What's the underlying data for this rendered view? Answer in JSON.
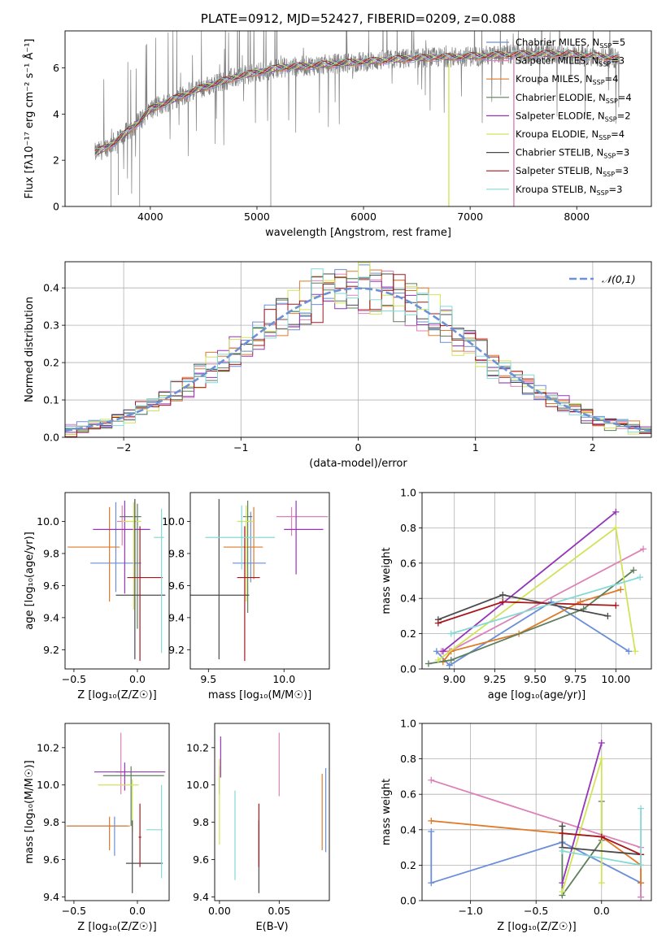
{
  "colors": {
    "chabrier_miles": "#6a8ed9",
    "salpeter_miles": "#dc82b8",
    "kroupa_miles": "#df7a28",
    "chabrier_elodie": "#5e7f5c",
    "salpeter_elodie": "#9535b8",
    "kroupa_elodie": "#d2e35a",
    "chabrier_stelib": "#4b4b4b",
    "salpeter_stelib": "#a6171c",
    "kroupa_stelib": "#84d9d5",
    "normal": "#6c91d6",
    "grid": "#b0b0b0"
  },
  "chart_data": [
    {
      "id": "spectrum",
      "type": "line",
      "title": "PLATE=0912, MJD=52427, FIBERID=0209, z=0.088",
      "xlabel": "wavelength [Angstrom, rest frame]",
      "ylabel": "Flux [fλ10⁻¹⁷ erg cm⁻² s⁻¹ Å⁻¹]",
      "xlim": [
        3200,
        8700
      ],
      "ylim": [
        0,
        7.6
      ],
      "xticks": [
        4000,
        5000,
        6000,
        7000,
        8000
      ],
      "yticks": [
        0,
        2,
        4,
        6
      ],
      "grid": false,
      "legend_position": "upper-right",
      "legend": [
        {
          "label": "Chabrier MILES, N",
          "sub": "SSP",
          "tail": "=5",
          "color_key": "chabrier_miles"
        },
        {
          "label": "Salpeter MILES, N",
          "sub": "SSP",
          "tail": "=3",
          "color_key": "salpeter_miles"
        },
        {
          "label": "Kroupa MILES, N",
          "sub": "SSP",
          "tail": "=4",
          "color_key": "kroupa_miles"
        },
        {
          "label": "Chabrier ELODIE, N",
          "sub": "SSP",
          "tail": "=4",
          "color_key": "chabrier_elodie"
        },
        {
          "label": "Salpeter ELODIE, N",
          "sub": "SSP",
          "tail": "=2",
          "color_key": "salpeter_elodie"
        },
        {
          "label": "Kroupa ELODIE, N",
          "sub": "SSP",
          "tail": "=4",
          "color_key": "kroupa_elodie"
        },
        {
          "label": "Chabrier STELIB, N",
          "sub": "SSP",
          "tail": "=3",
          "color_key": "chabrier_stelib"
        },
        {
          "label": "Salpeter STELIB, N",
          "sub": "SSP",
          "tail": "=3",
          "color_key": "salpeter_stelib"
        },
        {
          "label": "Kroupa STELIB, N",
          "sub": "SSP",
          "tail": "=3",
          "color_key": "kroupa_stelib"
        }
      ],
      "continuum": {
        "x": [
          3480,
          3600,
          3700,
          3800,
          3900,
          4000,
          4200,
          4400,
          4600,
          4800,
          5000,
          5200,
          5500,
          5800,
          6100,
          6400,
          6700,
          7000,
          7300,
          7600,
          7900,
          8200,
          8400
        ],
        "y": [
          2.3,
          2.6,
          2.9,
          3.3,
          3.7,
          4.2,
          4.6,
          5.0,
          5.3,
          5.6,
          5.8,
          6.0,
          6.1,
          6.2,
          6.3,
          6.4,
          6.45,
          6.5,
          6.55,
          6.6,
          6.6,
          6.5,
          6.4
        ]
      },
      "spike_lines": [
        {
          "x": 7410,
          "y0": 0,
          "y1": 6.6,
          "color_key": "salpeter_miles"
        },
        {
          "x": 6800,
          "y0": 0,
          "y1": 6.2,
          "color_key": "kroupa_elodie"
        }
      ]
    },
    {
      "id": "residual_histogram",
      "type": "histogram",
      "xlabel": "(data-model)/error",
      "ylabel": "Normed distribution",
      "xlim": [
        -2.5,
        2.5
      ],
      "ylim": [
        0,
        0.47
      ],
      "xticks": [
        -2,
        -1,
        0,
        1,
        2
      ],
      "yticks": [
        0,
        0.1,
        0.2,
        0.3,
        0.4
      ],
      "grid": true,
      "legend": [
        {
          "label": "𝒩(0,1)",
          "color_key": "normal",
          "style": "dashed"
        }
      ],
      "legend_position": "upper-right",
      "bin_range": [
        -2.5,
        2.5
      ],
      "bins": 50,
      "series_color_keys": [
        "chabrier_miles",
        "salpeter_miles",
        "kroupa_miles",
        "chabrier_elodie",
        "salpeter_elodie",
        "kroupa_elodie",
        "chabrier_stelib",
        "salpeter_stelib",
        "kroupa_stelib"
      ]
    },
    {
      "id": "age_vs_Z",
      "type": "errorbar",
      "xlabel": "Z [log₁₀(Z/Z☉)]",
      "ylabel": "age  [log₁₀(age/yr)]",
      "xlim": [
        -0.57,
        0.25
      ],
      "ylim": [
        9.08,
        10.18
      ],
      "xticks": [
        -0.5,
        0.0
      ],
      "yticks": [
        9.2,
        9.4,
        9.6,
        9.8,
        10.0
      ],
      "grid": false,
      "points": [
        {
          "x": -0.17,
          "xerr": [
            0.2,
            0.2
          ],
          "y": 9.74,
          "yerr": [
            0.18,
            0.38
          ],
          "color_key": "chabrier_miles"
        },
        {
          "x": -0.12,
          "xerr": [
            0.04,
            0.04
          ],
          "y": 10.0,
          "yerr": [
            0.15,
            0.1
          ],
          "color_key": "salpeter_miles"
        },
        {
          "x": -0.22,
          "xerr": [
            0.33,
            0.08
          ],
          "y": 9.84,
          "yerr": [
            0.34,
            0.25
          ],
          "color_key": "kroupa_miles"
        },
        {
          "x": 0.0,
          "xerr": [
            0.14,
            0.03
          ],
          "y": 10.03,
          "yerr": [
            0.7,
            0.08
          ],
          "color_key": "chabrier_elodie"
        },
        {
          "x": -0.1,
          "xerr": [
            0.25,
            0.2
          ],
          "y": 9.95,
          "yerr": [
            0.4,
            0.18
          ],
          "color_key": "salpeter_elodie"
        },
        {
          "x": -0.03,
          "xerr": [
            0.09,
            0.06
          ],
          "y": 10.0,
          "yerr": [
            0.55,
            0.12
          ],
          "color_key": "kroupa_elodie"
        },
        {
          "x": -0.02,
          "xerr": [
            0.15,
            0.24
          ],
          "y": 9.54,
          "yerr": [
            0.4,
            0.6
          ],
          "color_key": "chabrier_stelib"
        },
        {
          "x": 0.02,
          "xerr": [
            0.1,
            0.18
          ],
          "y": 9.65,
          "yerr": [
            0.52,
            0.32
          ],
          "color_key": "salpeter_stelib"
        },
        {
          "x": 0.19,
          "xerr": [
            0.06,
            0.02
          ],
          "y": 9.9,
          "yerr": [
            0.72,
            0.18
          ],
          "color_key": "kroupa_stelib"
        }
      ]
    },
    {
      "id": "age_vs_mass",
      "type": "errorbar",
      "xlabel": "mass [log₁₀(M/M☉)]",
      "ylabel": "",
      "xlim": [
        9.38,
        10.3
      ],
      "ylim": [
        9.08,
        10.18
      ],
      "xticks": [
        9.5,
        10.0
      ],
      "yticks": [
        9.2,
        9.4,
        9.6,
        9.8,
        10.0
      ],
      "grid": false,
      "points": [
        {
          "x": 9.78,
          "xerr": [
            0.12,
            0.1
          ],
          "y": 9.74,
          "yerr": [
            0.12,
            0.32
          ],
          "color_key": "chabrier_miles"
        },
        {
          "x": 10.05,
          "xerr": [
            0.1,
            0.24
          ],
          "y": 10.03,
          "yerr": [
            0.12,
            0.06
          ],
          "color_key": "salpeter_miles"
        },
        {
          "x": 9.8,
          "xerr": [
            0.2,
            0.06
          ],
          "y": 9.84,
          "yerr": [
            0.2,
            0.25
          ],
          "color_key": "kroupa_miles"
        },
        {
          "x": 9.76,
          "xerr": [
            0.03,
            0.03
          ],
          "y": 10.03,
          "yerr": [
            0.6,
            0.1
          ],
          "color_key": "chabrier_elodie"
        },
        {
          "x": 10.08,
          "xerr": [
            0.08,
            0.18
          ],
          "y": 9.95,
          "yerr": [
            0.28,
            0.18
          ],
          "color_key": "salpeter_elodie"
        },
        {
          "x": 9.75,
          "xerr": [
            0.06,
            0.05
          ],
          "y": 10.0,
          "yerr": [
            0.5,
            0.1
          ],
          "color_key": "kroupa_elodie"
        },
        {
          "x": 9.57,
          "xerr": [
            0.2,
            0.2
          ],
          "y": 9.54,
          "yerr": [
            0.4,
            0.6
          ],
          "color_key": "chabrier_stelib"
        },
        {
          "x": 9.74,
          "xerr": [
            0.05,
            0.1
          ],
          "y": 9.65,
          "yerr": [
            0.52,
            0.32
          ],
          "color_key": "salpeter_stelib"
        },
        {
          "x": 9.72,
          "xerr": [
            0.24,
            0.22
          ],
          "y": 9.9,
          "yerr": [
            0.2,
            0.2
          ],
          "color_key": "kroupa_stelib"
        }
      ]
    },
    {
      "id": "weight_vs_age",
      "type": "line",
      "xlabel": "age  [log₁₀(age/yr)]",
      "ylabel": "mass weight",
      "xlim": [
        8.8,
        10.22
      ],
      "ylim": [
        0,
        1.0
      ],
      "xticks": [
        9.0,
        9.25,
        9.5,
        9.75,
        10.0
      ],
      "xtick_labels": [
        "9.00",
        "9.25",
        "9.50",
        "9.75",
        "10.00"
      ],
      "yticks": [
        0,
        0.2,
        0.4,
        0.6,
        0.8,
        1.0
      ],
      "grid": true,
      "series": [
        {
          "color_key": "chabrier_miles",
          "x": [
            8.89,
            8.97,
            9.6,
            10.08
          ],
          "y": [
            0.1,
            0.02,
            0.38,
            0.1
          ]
        },
        {
          "color_key": "salpeter_miles",
          "x": [
            8.92,
            8.97,
            10.17
          ],
          "y": [
            0.1,
            0.1,
            0.68
          ]
        },
        {
          "color_key": "kroupa_miles",
          "x": [
            8.93,
            8.98,
            9.4,
            9.78,
            10.03
          ],
          "y": [
            0.04,
            0.1,
            0.2,
            0.38,
            0.45
          ]
        },
        {
          "color_key": "chabrier_elodie",
          "x": [
            8.84,
            8.98,
            9.8,
            10.11
          ],
          "y": [
            0.03,
            0.05,
            0.34,
            0.56
          ]
        },
        {
          "color_key": "salpeter_elodie",
          "x": [
            8.93,
            10.0
          ],
          "y": [
            0.1,
            0.89
          ]
        },
        {
          "color_key": "kroupa_elodie",
          "x": [
            8.9,
            10.0,
            10.12
          ],
          "y": [
            0.05,
            0.8,
            0.1
          ]
        },
        {
          "color_key": "chabrier_stelib",
          "x": [
            8.9,
            9.3,
            9.95
          ],
          "y": [
            0.28,
            0.42,
            0.3
          ]
        },
        {
          "color_key": "salpeter_stelib",
          "x": [
            8.9,
            9.3,
            10.0
          ],
          "y": [
            0.26,
            0.38,
            0.36
          ]
        },
        {
          "color_key": "kroupa_stelib",
          "x": [
            8.98,
            10.15
          ],
          "y": [
            0.2,
            0.52
          ]
        }
      ]
    },
    {
      "id": "mass_vs_Z",
      "type": "errorbar",
      "xlabel": "Z [log₁₀(Z/Z☉)]",
      "ylabel": "mass [log₁₀(M/M☉)]",
      "xlim": [
        -0.57,
        0.25
      ],
      "ylim": [
        9.38,
        10.33
      ],
      "xticks": [
        -0.5,
        0.0
      ],
      "yticks": [
        9.4,
        9.6,
        9.8,
        10.0,
        10.2
      ],
      "grid": false,
      "points": [
        {
          "x": -0.18,
          "xerr": [
            0.37,
            0.1
          ],
          "y": 9.78,
          "yerr": [
            0.16,
            0.05
          ],
          "color_key": "chabrier_miles"
        },
        {
          "x": -0.13,
          "xerr": [
            0.04,
            0.04
          ],
          "y": 10.07,
          "yerr": [
            0.12,
            0.21
          ],
          "color_key": "salpeter_miles"
        },
        {
          "x": -0.22,
          "xerr": [
            0.34,
            0.16
          ],
          "y": 9.78,
          "yerr": [
            0.13,
            0.05
          ],
          "color_key": "kroupa_miles"
        },
        {
          "x": -0.05,
          "xerr": [
            0.22,
            0.26
          ],
          "y": 10.05,
          "yerr": [
            0.27,
            0.05
          ],
          "color_key": "chabrier_elodie"
        },
        {
          "x": -0.1,
          "xerr": [
            0.24,
            0.32
          ],
          "y": 10.07,
          "yerr": [
            0.1,
            0.05
          ],
          "color_key": "salpeter_elodie"
        },
        {
          "x": -0.04,
          "xerr": [
            0.27,
            0.05
          ],
          "y": 10.0,
          "yerr": [
            0.25,
            0.03
          ],
          "color_key": "kroupa_elodie"
        },
        {
          "x": -0.04,
          "xerr": [
            0.05,
            0.24
          ],
          "y": 9.58,
          "yerr": [
            0.16,
            0.23
          ],
          "color_key": "chabrier_stelib"
        },
        {
          "x": 0.02,
          "xerr": [
            0.01,
            0.01
          ],
          "y": 9.72,
          "yerr": [
            0.16,
            0.18
          ],
          "color_key": "salpeter_stelib"
        },
        {
          "x": 0.19,
          "xerr": [
            0.12,
            0.01
          ],
          "y": 9.76,
          "yerr": [
            0.26,
            0.24
          ],
          "color_key": "kroupa_stelib"
        }
      ]
    },
    {
      "id": "mass_vs_ebv",
      "type": "errorbar",
      "xlabel": "E(B-V)",
      "ylabel": "",
      "xlim": [
        -0.004,
        0.092
      ],
      "ylim": [
        9.38,
        10.33
      ],
      "xticks": [
        0.0,
        0.05
      ],
      "xtick_labels": [
        "0.00",
        "0.05"
      ],
      "yticks": [
        9.4,
        9.6,
        9.8,
        10.0,
        10.2
      ],
      "grid": false,
      "points": [
        {
          "x": 0.089,
          "xerr": [
            0,
            0
          ],
          "y": 9.88,
          "yerr": [
            0.24,
            0.21
          ],
          "color_key": "chabrier_miles"
        },
        {
          "x": 0.05,
          "xerr": [
            0,
            0
          ],
          "y": 10.07,
          "yerr": [
            0.13,
            0.21
          ],
          "color_key": "salpeter_miles"
        },
        {
          "x": 0.086,
          "xerr": [
            0,
            0
          ],
          "y": 9.85,
          "yerr": [
            0.2,
            0.21
          ],
          "color_key": "kroupa_miles"
        },
        {
          "x": 0.0,
          "xerr": [
            0,
            0
          ],
          "y": 10.05,
          "yerr": [
            0.1,
            0.05
          ],
          "color_key": "chabrier_elodie"
        },
        {
          "x": 0.001,
          "xerr": [
            0,
            0
          ],
          "y": 10.12,
          "yerr": [
            0.08,
            0.14
          ],
          "color_key": "salpeter_elodie"
        },
        {
          "x": 0.0,
          "xerr": [
            0,
            0
          ],
          "y": 9.9,
          "yerr": [
            0.22,
            0.24
          ],
          "color_key": "kroupa_elodie"
        },
        {
          "x": 0.033,
          "xerr": [
            0,
            0
          ],
          "y": 9.58,
          "yerr": [
            0.16,
            0.23
          ],
          "color_key": "chabrier_stelib"
        },
        {
          "x": 0.033,
          "xerr": [
            0,
            0
          ],
          "y": 9.72,
          "yerr": [
            0.16,
            0.18
          ],
          "color_key": "salpeter_stelib"
        },
        {
          "x": 0.013,
          "xerr": [
            0,
            0
          ],
          "y": 9.73,
          "yerr": [
            0.24,
            0.24
          ],
          "color_key": "kroupa_stelib"
        }
      ]
    },
    {
      "id": "weight_vs_Z",
      "type": "line",
      "xlabel": "Z [log₁₀(Z/Z☉)]",
      "ylabel": "mass weight",
      "xlim": [
        -1.37,
        0.38
      ],
      "ylim": [
        0,
        1.0
      ],
      "xticks": [
        -1.0,
        -0.5,
        0.0
      ],
      "yticks": [
        0,
        0.2,
        0.4,
        0.6,
        0.8,
        1.0
      ],
      "grid": true,
      "series": [
        {
          "color_key": "chabrier_miles",
          "x": [
            -1.3,
            -1.3,
            -0.3,
            0.3,
            0.3
          ],
          "y": [
            0.39,
            0.1,
            0.33,
            0.1,
            0.02
          ]
        },
        {
          "color_key": "salpeter_miles",
          "x": [
            -1.3,
            0.3,
            0.3
          ],
          "y": [
            0.68,
            0.3,
            0.02
          ]
        },
        {
          "color_key": "kroupa_miles",
          "x": [
            -1.3,
            -0.3,
            0.0,
            0.3,
            0.3
          ],
          "y": [
            0.45,
            0.38,
            0.36,
            0.2,
            0.1
          ]
        },
        {
          "color_key": "chabrier_elodie",
          "x": [
            -0.3,
            -0.3,
            0.0,
            0.0
          ],
          "y": [
            0.42,
            0.03,
            0.34,
            0.56
          ]
        },
        {
          "color_key": "salpeter_elodie",
          "x": [
            -0.3,
            0.0
          ],
          "y": [
            0.1,
            0.89
          ]
        },
        {
          "color_key": "kroupa_elodie",
          "x": [
            -0.3,
            0.0,
            0.0
          ],
          "y": [
            0.05,
            0.8,
            0.1
          ]
        },
        {
          "color_key": "chabrier_stelib",
          "x": [
            -0.3,
            -0.3,
            0.3
          ],
          "y": [
            0.42,
            0.3,
            0.26
          ]
        },
        {
          "color_key": "salpeter_stelib",
          "x": [
            -0.3,
            0.0,
            0.3
          ],
          "y": [
            0.38,
            0.36,
            0.26
          ]
        },
        {
          "color_key": "kroupa_stelib",
          "x": [
            -0.3,
            0.3,
            0.3
          ],
          "y": [
            0.28,
            0.2,
            0.52
          ]
        }
      ]
    }
  ]
}
